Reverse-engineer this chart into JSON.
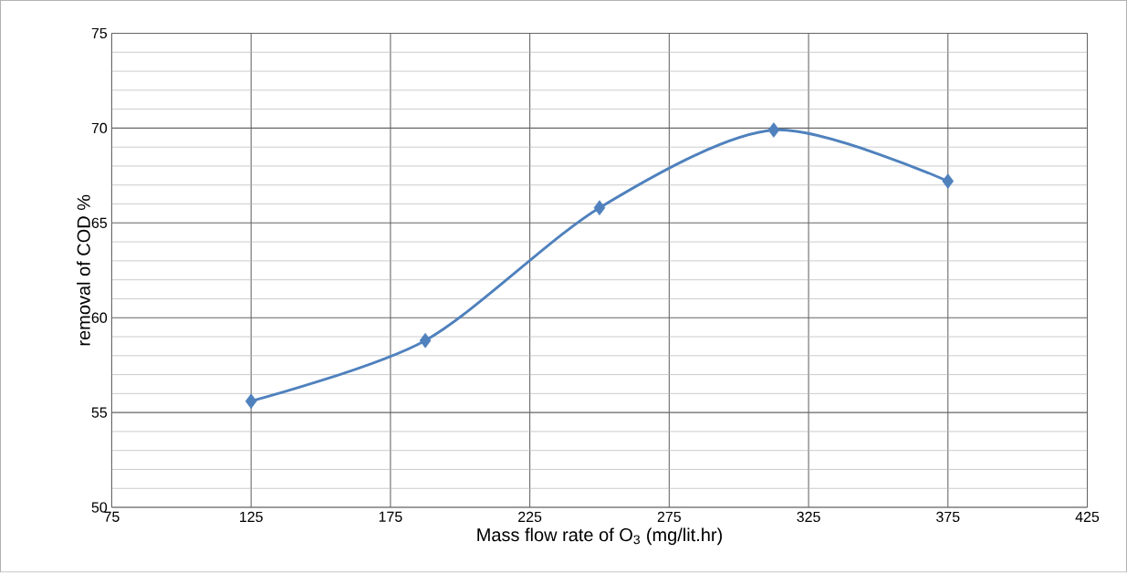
{
  "chart_data": {
    "type": "line",
    "xlabel": "Mass flow rate of O$_{3}$ (mg/lit.hr)",
    "ylabel": "removal of COD %",
    "x": [
      125,
      187.5,
      250,
      312.5,
      375
    ],
    "series": [
      {
        "color": "#4f81bd",
        "values": [
          55.6,
          58.8,
          65.8,
          69.9,
          67.2
        ]
      }
    ],
    "xlim": [
      75,
      425
    ],
    "xticks": [
      75,
      125,
      175,
      225,
      275,
      325,
      375,
      425
    ],
    "ylim": [
      50,
      75
    ],
    "yticks": [
      50,
      55,
      60,
      65,
      70,
      75
    ],
    "grid": true,
    "marker": "diamond",
    "line_style": "solid"
  }
}
